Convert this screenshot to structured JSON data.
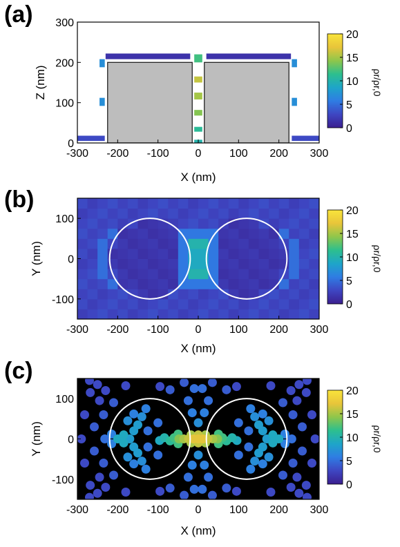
{
  "colormap": {
    "stops": [
      "#3b1f8f",
      "#3e46c2",
      "#2f7ce3",
      "#1ea5c9",
      "#2dbf8e",
      "#8fc64b",
      "#e8c53a",
      "#f9e43b"
    ]
  },
  "chart_data": [
    {
      "panel_label": "(a)",
      "type": "heatmap",
      "xlabel": "X (nm)",
      "ylabel": "Z (nm)",
      "xlim": [
        -300,
        300
      ],
      "ylim": [
        0,
        300
      ],
      "xticks": [
        -300,
        -200,
        -100,
        0,
        100,
        200,
        300
      ],
      "yticks": [
        0,
        100,
        200,
        300
      ],
      "colorbar": {
        "label": "ρr/ρr,0",
        "ticks": [
          0,
          5,
          10,
          15,
          20
        ],
        "range": [
          0,
          20
        ]
      },
      "background": "#ffffff",
      "structure": [
        {
          "shape": "rect",
          "x0": -225,
          "x1": -15,
          "z0": 0,
          "z1": 200,
          "color": "#bdbdbd"
        },
        {
          "shape": "rect",
          "x0": 15,
          "x1": 225,
          "z0": 0,
          "z1": 200,
          "color": "#bdbdbd"
        }
      ],
      "cells": [
        {
          "x0": -230,
          "x1": -20,
          "z0": 208,
          "z1": 222,
          "value": 1.5
        },
        {
          "x0": 20,
          "x1": 230,
          "z0": 208,
          "z1": 222,
          "value": 1.5
        },
        {
          "x0": -300,
          "x1": -232,
          "z0": 5,
          "z1": 18,
          "value": 3
        },
        {
          "x0": 232,
          "x1": 300,
          "z0": 5,
          "z1": 18,
          "value": 3
        },
        {
          "x0": -245,
          "x1": -232,
          "z0": 188,
          "z1": 208,
          "value": 7
        },
        {
          "x0": 232,
          "x1": 245,
          "z0": 188,
          "z1": 208,
          "value": 7
        },
        {
          "x0": -245,
          "x1": -232,
          "z0": 92,
          "z1": 112,
          "value": 7
        },
        {
          "x0": 232,
          "x1": 245,
          "z0": 92,
          "z1": 112,
          "value": 7
        },
        {
          "x0": -10,
          "x1": 10,
          "z0": 200,
          "z1": 220,
          "value": 12
        },
        {
          "x0": -10,
          "x1": 10,
          "z0": 150,
          "z1": 165,
          "value": 16
        },
        {
          "x0": -10,
          "x1": 10,
          "z0": 108,
          "z1": 125,
          "value": 15
        },
        {
          "x0": -10,
          "x1": 10,
          "z0": 68,
          "z1": 82,
          "value": 14
        },
        {
          "x0": -10,
          "x1": 10,
          "z0": 28,
          "z1": 40,
          "value": 11
        },
        {
          "x0": -10,
          "x1": 10,
          "z0": 0,
          "z1": 8,
          "value": 10
        }
      ]
    },
    {
      "panel_label": "(b)",
      "type": "heatmap",
      "xlabel": "X (nm)",
      "ylabel": "Y (nm)",
      "xlim": [
        -300,
        300
      ],
      "ylim": [
        -150,
        150
      ],
      "xticks": [
        -300,
        -200,
        -100,
        0,
        100,
        200,
        300
      ],
      "yticks": [
        -100,
        0,
        100
      ],
      "colorbar": {
        "label": "ρr/ρr,0",
        "ticks": [
          0,
          5,
          10,
          15,
          20
        ],
        "range": [
          0,
          20
        ]
      },
      "grid_size": {
        "nx": 24,
        "ny": 12,
        "cell_nm": 25
      },
      "base_value": 2.8,
      "inside_particle_value": 1.6,
      "outer_rim_value": 5,
      "features": [
        {
          "x": 0,
          "y": 0,
          "value": 17
        },
        {
          "x": -12,
          "y": 37,
          "value": 10
        },
        {
          "x": 12,
          "y": 37,
          "value": 10
        },
        {
          "x": -12,
          "y": -37,
          "value": 10
        },
        {
          "x": 12,
          "y": -37,
          "value": 10
        },
        {
          "x": -12,
          "y": 12,
          "value": 9
        },
        {
          "x": 12,
          "y": 12,
          "value": 9
        },
        {
          "x": -12,
          "y": -12,
          "value": 9
        },
        {
          "x": 12,
          "y": -12,
          "value": 9
        }
      ],
      "circles": [
        {
          "cx": -120,
          "cy": 0,
          "r": 100
        },
        {
          "cx": 120,
          "cy": 0,
          "r": 100
        }
      ]
    },
    {
      "panel_label": "(c)",
      "type": "scatter",
      "xlabel": "X (nm)",
      "ylabel": "Y (nm)",
      "xlim": [
        -300,
        300
      ],
      "ylim": [
        -150,
        150
      ],
      "xticks": [
        -300,
        -200,
        -100,
        0,
        100,
        200,
        300
      ],
      "yticks": [
        -100,
        0,
        100
      ],
      "colorbar": {
        "label": "ρr/ρr,0",
        "ticks": [
          0,
          5,
          10,
          15,
          20
        ],
        "range": [
          0,
          20
        ]
      },
      "background": "#000000",
      "circles": [
        {
          "cx": -120,
          "cy": 0,
          "r": 100
        },
        {
          "cx": 120,
          "cy": 0,
          "r": 100
        }
      ],
      "points": [
        [
          0,
          0,
          17
        ],
        [
          12,
          0,
          17
        ],
        [
          -12,
          0,
          17
        ],
        [
          24,
          0,
          16
        ],
        [
          -24,
          0,
          16
        ],
        [
          36,
          0,
          15
        ],
        [
          -36,
          0,
          15
        ],
        [
          48,
          0,
          14
        ],
        [
          -48,
          0,
          14
        ],
        [
          0,
          10,
          16
        ],
        [
          0,
          -10,
          16
        ],
        [
          18,
          10,
          15
        ],
        [
          -18,
          10,
          15
        ],
        [
          18,
          -10,
          15
        ],
        [
          -18,
          -10,
          15
        ],
        [
          60,
          3,
          12
        ],
        [
          -60,
          3,
          12
        ],
        [
          70,
          -5,
          11
        ],
        [
          -70,
          -5,
          11
        ],
        [
          84,
          3,
          10
        ],
        [
          -84,
          3,
          10
        ],
        [
          96,
          -4,
          9
        ],
        [
          -96,
          -4,
          9
        ],
        [
          50,
          12,
          12
        ],
        [
          -50,
          12,
          12
        ],
        [
          50,
          -12,
          12
        ],
        [
          -50,
          -12,
          12
        ],
        [
          -200,
          0,
          9
        ],
        [
          -185,
          -10,
          9
        ],
        [
          -185,
          10,
          9
        ],
        [
          -170,
          0,
          8
        ],
        [
          -160,
          -20,
          8
        ],
        [
          -160,
          20,
          8
        ],
        [
          200,
          0,
          9
        ],
        [
          185,
          -10,
          9
        ],
        [
          185,
          10,
          9
        ],
        [
          170,
          0,
          8
        ],
        [
          160,
          -20,
          8
        ],
        [
          160,
          20,
          8
        ],
        [
          -150,
          35,
          8
        ],
        [
          -150,
          -35,
          8
        ],
        [
          -140,
          55,
          7
        ],
        [
          -140,
          -55,
          7
        ],
        [
          -130,
          75,
          6
        ],
        [
          -130,
          -75,
          6
        ],
        [
          150,
          35,
          8
        ],
        [
          150,
          -35,
          8
        ],
        [
          140,
          55,
          7
        ],
        [
          140,
          -55,
          7
        ],
        [
          130,
          75,
          6
        ],
        [
          130,
          -75,
          6
        ],
        [
          -175,
          45,
          7
        ],
        [
          -175,
          -45,
          7
        ],
        [
          175,
          45,
          7
        ],
        [
          175,
          -45,
          7
        ],
        [
          -160,
          62,
          6
        ],
        [
          -160,
          -62,
          6
        ],
        [
          160,
          62,
          6
        ],
        [
          160,
          -62,
          6
        ],
        [
          -215,
          12,
          6
        ],
        [
          -215,
          -12,
          6
        ],
        [
          215,
          12,
          6
        ],
        [
          215,
          -12,
          6
        ],
        [
          -232,
          0,
          5
        ],
        [
          232,
          0,
          5
        ],
        [
          -125,
          20,
          5
        ],
        [
          -125,
          -20,
          5
        ],
        [
          125,
          20,
          5
        ],
        [
          125,
          -20,
          5
        ],
        [
          -100,
          40,
          5
        ],
        [
          -100,
          -40,
          5
        ],
        [
          100,
          40,
          5
        ],
        [
          100,
          -40,
          5
        ],
        [
          0,
          40,
          7
        ],
        [
          0,
          -40,
          7
        ],
        [
          -15,
          65,
          6
        ],
        [
          15,
          65,
          6
        ],
        [
          -15,
          -65,
          6
        ],
        [
          15,
          -65,
          6
        ],
        [
          -25,
          95,
          5
        ],
        [
          25,
          95,
          5
        ],
        [
          -25,
          -95,
          5
        ],
        [
          25,
          -95,
          5
        ],
        [
          -10,
          125,
          5
        ],
        [
          10,
          125,
          5
        ],
        [
          -10,
          -125,
          5
        ],
        [
          10,
          -125,
          5
        ],
        [
          -35,
          140,
          4
        ],
        [
          35,
          140,
          4
        ],
        [
          -35,
          -140,
          4
        ],
        [
          35,
          -140,
          4
        ],
        [
          -70,
          122,
          4
        ],
        [
          70,
          122,
          4
        ],
        [
          -70,
          -122,
          4
        ],
        [
          70,
          -122,
          4
        ],
        [
          -95,
          130,
          3
        ],
        [
          95,
          130,
          3
        ],
        [
          -95,
          -130,
          3
        ],
        [
          95,
          -130,
          3
        ],
        [
          -210,
          90,
          4
        ],
        [
          -210,
          -90,
          4
        ],
        [
          210,
          90,
          4
        ],
        [
          210,
          -90,
          4
        ],
        [
          -235,
          60,
          4
        ],
        [
          -235,
          -60,
          4
        ],
        [
          235,
          60,
          4
        ],
        [
          235,
          -60,
          4
        ],
        [
          -258,
          30,
          4
        ],
        [
          -258,
          -30,
          4
        ],
        [
          258,
          30,
          4
        ],
        [
          258,
          -30,
          4
        ],
        [
          -268,
          115,
          3
        ],
        [
          -268,
          -115,
          3
        ],
        [
          268,
          115,
          3
        ],
        [
          268,
          -115,
          3
        ],
        [
          -282,
          60,
          3
        ],
        [
          -282,
          -60,
          3
        ],
        [
          282,
          60,
          3
        ],
        [
          282,
          -60,
          3
        ],
        [
          -290,
          0,
          3
        ],
        [
          290,
          0,
          3
        ],
        [
          -270,
          145,
          3
        ],
        [
          270,
          145,
          3
        ],
        [
          -270,
          -145,
          3
        ],
        [
          270,
          -145,
          3
        ],
        [
          -250,
          135,
          3
        ],
        [
          250,
          135,
          3
        ],
        [
          -250,
          -135,
          3
        ],
        [
          250,
          -135,
          3
        ],
        [
          -230,
          120,
          3
        ],
        [
          230,
          120,
          3
        ],
        [
          -230,
          -120,
          3
        ],
        [
          230,
          -120,
          3
        ],
        [
          -180,
          132,
          3
        ],
        [
          180,
          132,
          3
        ],
        [
          -180,
          -132,
          3
        ],
        [
          180,
          -132,
          3
        ],
        [
          -245,
          95,
          3
        ],
        [
          245,
          95,
          3
        ],
        [
          -245,
          -95,
          3
        ],
        [
          245,
          -95,
          3
        ]
      ]
    }
  ]
}
